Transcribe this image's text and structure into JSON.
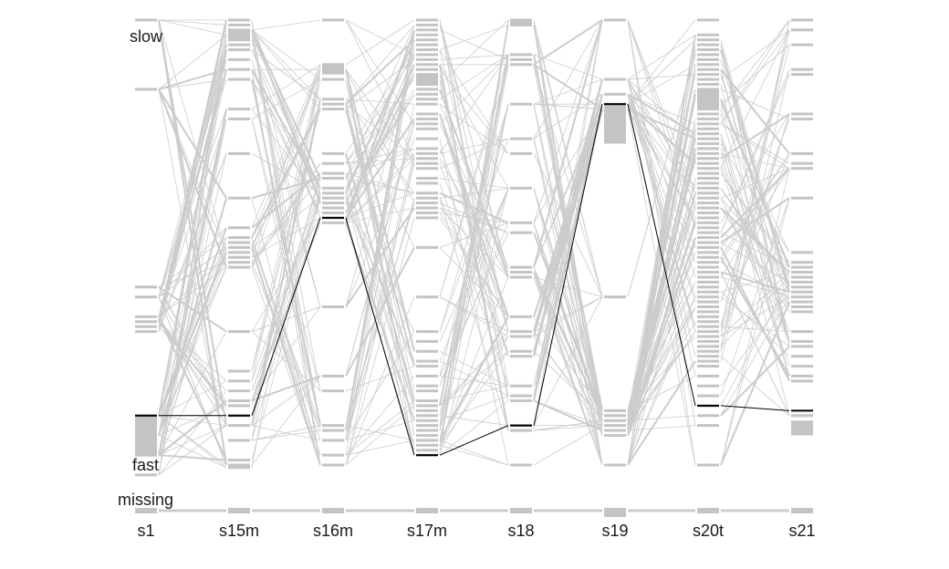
{
  "chart_data": {
    "type": "parallel-sets",
    "title": "",
    "variables": [
      "s1",
      "s15m",
      "s16m",
      "s17m",
      "s18",
      "s19",
      "s20t",
      "s21"
    ],
    "annotations": {
      "top": "slow",
      "bottom": "fast",
      "missing": "missing"
    },
    "colors": {
      "background_lines": "#cccccc",
      "bars": "#c4c4c4",
      "highlight": "#000000",
      "text": "#1a1a1a"
    },
    "axes": [
      {
        "name": "s1",
        "levels": [
          0.0,
          0.14,
          0.54,
          0.56,
          0.6,
          0.61,
          0.62,
          0.63,
          0.8,
          0.84,
          0.88,
          0.92
        ],
        "big": [
          0.8,
          0.88
        ],
        "missing_share": "small"
      },
      {
        "name": "s15m",
        "levels": [
          0.0,
          0.01,
          0.02,
          0.03,
          0.04,
          0.05,
          0.06,
          0.08,
          0.1,
          0.12,
          0.18,
          0.2,
          0.27,
          0.36,
          0.42,
          0.44,
          0.45,
          0.46,
          0.47,
          0.48,
          0.49,
          0.5,
          0.63,
          0.71,
          0.73,
          0.75,
          0.77,
          0.78,
          0.8,
          0.82,
          0.85,
          0.89,
          0.9,
          0.905
        ],
        "big": [
          0.02,
          0.04
        ],
        "missing_share": "small"
      },
      {
        "name": "s16m",
        "levels": [
          0.0,
          0.09,
          0.1,
          0.12,
          0.16,
          0.17,
          0.18,
          0.27,
          0.29,
          0.31,
          0.32,
          0.34,
          0.35,
          0.36,
          0.37,
          0.38,
          0.39,
          0.4,
          0.41,
          0.58,
          0.72,
          0.75,
          0.82,
          0.83,
          0.85,
          0.88,
          0.9
        ],
        "big": [
          0.09,
          0.11
        ],
        "missing_share": "small"
      },
      {
        "name": "s17m",
        "levels": [
          0.0,
          0.01,
          0.02,
          0.03,
          0.04,
          0.05,
          0.06,
          0.07,
          0.08,
          0.09,
          0.1,
          0.11,
          0.12,
          0.13,
          0.14,
          0.15,
          0.16,
          0.17,
          0.19,
          0.2,
          0.21,
          0.22,
          0.24,
          0.26,
          0.27,
          0.28,
          0.29,
          0.3,
          0.32,
          0.33,
          0.35,
          0.36,
          0.37,
          0.38,
          0.39,
          0.4,
          0.46,
          0.56,
          0.63,
          0.65,
          0.67,
          0.69,
          0.7,
          0.72,
          0.74,
          0.75,
          0.77,
          0.78,
          0.79,
          0.8,
          0.81,
          0.82,
          0.83,
          0.84,
          0.85,
          0.86,
          0.87,
          0.88
        ],
        "big": [
          0.11,
          0.13
        ],
        "missing_share": "small"
      },
      {
        "name": "s18",
        "levels": [
          0.0,
          0.01,
          0.07,
          0.08,
          0.09,
          0.17,
          0.24,
          0.27,
          0.34,
          0.41,
          0.43,
          0.5,
          0.51,
          0.52,
          0.6,
          0.63,
          0.64,
          0.67,
          0.68,
          0.74,
          0.76,
          0.77,
          0.82,
          0.83,
          0.9
        ],
        "big": [
          0.0,
          0.01
        ],
        "missing_share": "small"
      },
      {
        "name": "s19",
        "levels": [
          0.0,
          0.12,
          0.15,
          0.17,
          0.18,
          0.56,
          0.79,
          0.8,
          0.81,
          0.82,
          0.83,
          0.84,
          0.9
        ],
        "big": [
          0.17,
          0.25
        ],
        "missing_share": "small"
      },
      {
        "name": "s20t",
        "levels": [
          0.0,
          0.03,
          0.04,
          0.05,
          0.06,
          0.07,
          0.08,
          0.09,
          0.1,
          0.11,
          0.12,
          0.13,
          0.14,
          0.15,
          0.16,
          0.17,
          0.18,
          0.19,
          0.2,
          0.21,
          0.22,
          0.23,
          0.24,
          0.25,
          0.26,
          0.27,
          0.28,
          0.29,
          0.3,
          0.31,
          0.32,
          0.33,
          0.34,
          0.35,
          0.36,
          0.37,
          0.38,
          0.39,
          0.4,
          0.41,
          0.42,
          0.43,
          0.44,
          0.45,
          0.46,
          0.47,
          0.48,
          0.49,
          0.5,
          0.51,
          0.52,
          0.53,
          0.54,
          0.55,
          0.56,
          0.57,
          0.58,
          0.59,
          0.6,
          0.61,
          0.62,
          0.63,
          0.64,
          0.65,
          0.66,
          0.67,
          0.68,
          0.69,
          0.7,
          0.72,
          0.74,
          0.76,
          0.78,
          0.8,
          0.82,
          0.9
        ],
        "big": [
          0.14,
          0.18
        ],
        "missing_share": "small"
      },
      {
        "name": "s21",
        "levels": [
          0.0,
          0.02,
          0.05,
          0.1,
          0.11,
          0.19,
          0.2,
          0.27,
          0.29,
          0.3,
          0.36,
          0.47,
          0.49,
          0.5,
          0.51,
          0.52,
          0.53,
          0.54,
          0.55,
          0.56,
          0.57,
          0.58,
          0.59,
          0.63,
          0.65,
          0.66,
          0.68,
          0.7,
          0.72,
          0.73,
          0.8
        ],
        "big": [
          0.81,
          0.84
        ],
        "missing_share": "small"
      }
    ],
    "highlight_path": [
      0.8,
      0.8,
      0.4,
      0.88,
      0.82,
      0.17,
      0.78,
      0.79
    ]
  }
}
